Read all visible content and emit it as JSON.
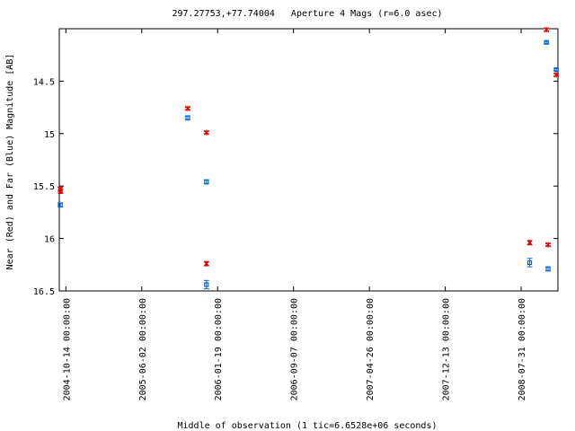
{
  "chart_data": {
    "type": "scatter",
    "title": "297.27753,+77.74004   Aperture 4 Mags (r=6.0 asec)",
    "xlabel": "Middle of observation (1 tic=6.6528e+06 seconds)",
    "ylabel": "Near (Red) and Far (Blue) Magnitude [AB]",
    "ylim": [
      16.5,
      14.0
    ],
    "y_inverted": true,
    "yticks": [
      14.5,
      15,
      15.5,
      16,
      16.5
    ],
    "ytick_labels": [
      "14.5",
      "15",
      "15.5",
      "16",
      "16.5"
    ],
    "xlim": [
      "2004-09-24",
      "2008-11-20"
    ],
    "xticks": [
      "2004-10-14",
      "2005-06-02",
      "2006-01-19",
      "2006-09-07",
      "2007-04-26",
      "2007-12-13",
      "2008-07-31"
    ],
    "xtick_labels": [
      "2004-10-14 00:00:00",
      "2005-06-02 00:00:00",
      "2006-01-19 00:00:00",
      "2006-09-07 00:00:00",
      "2007-04-26 00:00:00",
      "2007-12-13 00:00:00",
      "2008-07-31 00:00:00"
    ],
    "grid": false,
    "series": [
      {
        "color": "#dd0000",
        "marker": "asterisk",
        "points": [
          {
            "x": "2004-09-27",
            "y": 15.53,
            "err": 0.02
          },
          {
            "x": "2004-09-28",
            "y": 15.55,
            "err": 0.02
          },
          {
            "x": "2005-10-20",
            "y": 14.76,
            "err": 0.01
          },
          {
            "x": "2005-12-16",
            "y": 14.99,
            "err": 0.01
          },
          {
            "x": "2005-12-16",
            "y": 16.24,
            "err": 0.02
          },
          {
            "x": "2008-08-26",
            "y": 16.04,
            "err": 0.02
          },
          {
            "x": "2008-10-16",
            "y": 14.01,
            "err": 0.01
          },
          {
            "x": "2008-10-21",
            "y": 16.06,
            "err": 0.01
          },
          {
            "x": "2008-11-15",
            "y": 14.44,
            "err": 0.01
          }
        ]
      },
      {
        "color": "#0066dd",
        "marker": "square",
        "points": [
          {
            "x": "2004-09-27",
            "y": 15.68,
            "err": 0.02
          },
          {
            "x": "2005-10-20",
            "y": 14.85,
            "err": 0.02
          },
          {
            "x": "2005-12-16",
            "y": 15.46,
            "err": 0.02
          },
          {
            "x": "2005-12-16",
            "y": 16.44,
            "err": 0.04
          },
          {
            "x": "2008-08-26",
            "y": 16.23,
            "err": 0.04
          },
          {
            "x": "2008-10-16",
            "y": 14.13,
            "err": 0.01
          },
          {
            "x": "2008-10-21",
            "y": 16.29,
            "err": 0.02
          },
          {
            "x": "2008-11-15",
            "y": 14.39,
            "err": 0.01
          }
        ]
      }
    ]
  }
}
